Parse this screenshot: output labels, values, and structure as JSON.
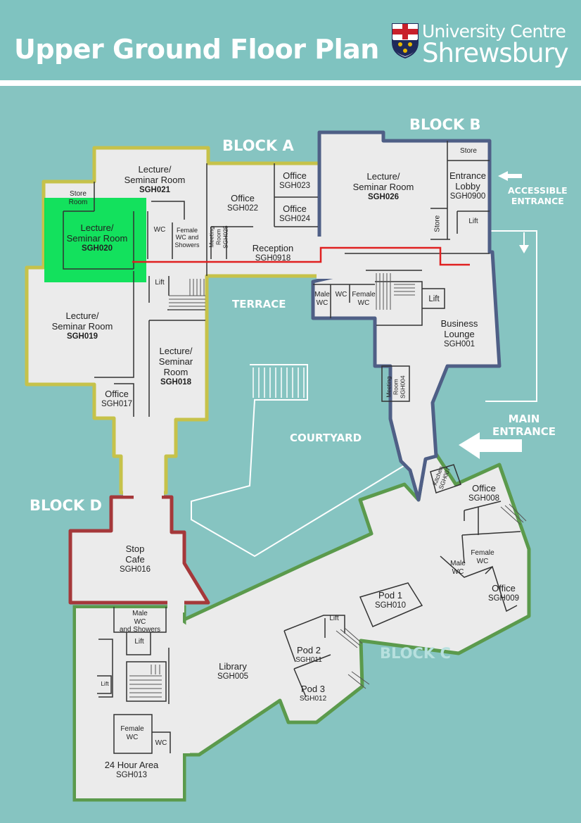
{
  "header": {
    "title": "Upper Ground Floor Plan",
    "logo_line1": "University Centre",
    "logo_line2": "Shrewsbury"
  },
  "blocks": {
    "a": "BLOCK A",
    "b": "BLOCK B",
    "c": "BLOCK C",
    "d": "BLOCK D"
  },
  "areas": {
    "terrace": "TERRACE",
    "courtyard": "COURTYARD",
    "accessible_entrance_1": "ACCESSIBLE",
    "accessible_entrance_2": "ENTRANCE",
    "main_entrance_1": "MAIN",
    "main_entrance_2": "ENTRANCE"
  },
  "rooms": {
    "sgh021": {
      "l1": "Lecture/",
      "l2": "Seminar Room",
      "code": "SGH021"
    },
    "sgh020": {
      "l1": "Lecture/",
      "l2": "Seminar Room",
      "code": "SGH020"
    },
    "sgh019": {
      "l1": "Lecture/",
      "l2": "Seminar Room",
      "code": "SGH019"
    },
    "sgh018": {
      "l1": "Lecture/",
      "l2": "Seminar",
      "l3": "Room",
      "code": "SGH018"
    },
    "sgh026": {
      "l1": "Lecture/",
      "l2": "Seminar Room",
      "code": "SGH026"
    },
    "sgh022": {
      "l1": "Office",
      "code": "SGH022"
    },
    "sgh023": {
      "l1": "Office",
      "code": "SGH023"
    },
    "sgh024": {
      "l1": "Office",
      "code": "SGH024"
    },
    "sgh017": {
      "l1": "Office",
      "code": "SGH017"
    },
    "sgh0918": {
      "l1": "Reception",
      "code": "SGH0918"
    },
    "sgh0900": {
      "l1": "Entrance",
      "l2": "Lobby",
      "code": "SGH0900"
    },
    "sgh001": {
      "l1": "Business",
      "l2": "Lounge",
      "code": "SGH001"
    },
    "sgh004": {
      "l1": "Meeting",
      "l2": "Room",
      "code": "SGH004"
    },
    "sgh025": {
      "l1": "Meeting",
      "l2": "Room",
      "code": "SGH025"
    },
    "sgh016": {
      "l1": "Stop",
      "l2": "Cafe",
      "code": "SGH016"
    },
    "sgh007": {
      "l1": "Kitchen",
      "code": "SGH007"
    },
    "sgh008": {
      "l1": "Office",
      "code": "SGH008"
    },
    "sgh009": {
      "l1": "Office",
      "code": "SGH009"
    },
    "sgh010": {
      "l1": "Pod 1",
      "code": "SGH010"
    },
    "sgh011": {
      "l1": "Pod 2",
      "code": "SGH011"
    },
    "sgh012": {
      "l1": "Pod 3",
      "code": "SGH012"
    },
    "sgh005": {
      "l1": "Library",
      "code": "SGH005"
    },
    "sgh013": {
      "l1": "24 Hour Area",
      "code": "SGH013"
    }
  },
  "facilities": {
    "store": "Store",
    "store_room_1": "Store",
    "store_room_2": "Room",
    "lift": "Lift",
    "wc": "WC",
    "male": "Male",
    "female": "Female",
    "female_wc_showers_1": "Female",
    "female_wc_showers_2": "WC and",
    "female_wc_showers_3": "Showers",
    "male_wc_showers_1": "Male",
    "male_wc_showers_2": "WC",
    "male_wc_showers_3": "and Showers"
  },
  "colors": {
    "background": "#86c4c1",
    "header": "#7fc3c0",
    "floor": "#ebebeb",
    "block_a": "#c6c24a",
    "block_b": "#4f5f86",
    "block_c": "#5b9a4c",
    "block_d": "#a5383a",
    "highlight": "#00e050",
    "route": "#e02020"
  }
}
